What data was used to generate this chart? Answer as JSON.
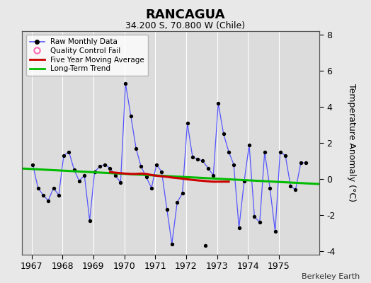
{
  "title": "RANCAGUA",
  "subtitle": "34.200 S, 70.800 W (Chile)",
  "ylabel": "Temperature Anomaly (°C)",
  "credit": "Berkeley Earth",
  "xlim": [
    1966.7,
    1976.3
  ],
  "ylim": [
    -4.2,
    8.2
  ],
  "yticks": [
    -4,
    -2,
    0,
    2,
    4,
    6,
    8
  ],
  "xticks": [
    1967,
    1968,
    1969,
    1970,
    1971,
    1972,
    1973,
    1974,
    1975
  ],
  "bg_color": "#e8e8e8",
  "plot_bg": "#dcdcdc",
  "raw_x": [
    1967.04,
    1967.21,
    1967.38,
    1967.54,
    1967.71,
    1967.88,
    1968.04,
    1968.21,
    1968.38,
    1968.54,
    1968.71,
    1968.88,
    1969.04,
    1969.21,
    1969.38,
    1969.54,
    1969.71,
    1969.88,
    1970.04,
    1970.21,
    1970.38,
    1970.54,
    1970.71,
    1970.88,
    1971.04,
    1971.21,
    1971.38,
    1971.54,
    1971.71,
    1971.88,
    1972.04,
    1972.21,
    1972.38,
    1972.54,
    1972.71,
    1972.88,
    1973.04,
    1973.21,
    1973.38,
    1973.54,
    1973.71,
    1973.88,
    1974.04,
    1974.21,
    1974.38,
    1974.54,
    1974.71,
    1974.88,
    1975.04,
    1975.21,
    1975.38,
    1975.54,
    1975.71,
    1975.88
  ],
  "raw_y": [
    0.8,
    -0.5,
    -0.9,
    -1.2,
    -0.5,
    -0.9,
    1.3,
    1.5,
    0.5,
    -0.1,
    0.2,
    -2.3,
    0.4,
    0.7,
    0.8,
    0.6,
    0.2,
    -0.2,
    5.3,
    3.5,
    1.7,
    0.7,
    0.1,
    -0.5,
    0.8,
    0.4,
    -1.7,
    -3.6,
    -1.3,
    -0.8,
    3.1,
    1.2,
    1.1,
    1.0,
    0.6,
    0.2,
    4.2,
    2.5,
    1.5,
    0.8,
    -2.7,
    -0.1,
    1.9,
    -2.1,
    -2.4,
    1.5,
    -0.5,
    -2.9,
    1.5,
    1.3,
    -0.4,
    -0.6,
    0.9,
    0.9
  ],
  "moving_avg_x": [
    1969.54,
    1969.71,
    1969.88,
    1970.04,
    1970.21,
    1970.38,
    1970.54,
    1970.71,
    1970.88,
    1971.04,
    1971.21,
    1971.38,
    1971.54,
    1971.71,
    1971.88,
    1972.04,
    1972.21,
    1972.38,
    1972.54,
    1972.71,
    1972.88,
    1973.04,
    1973.21,
    1973.38
  ],
  "moving_avg_y": [
    0.38,
    0.35,
    0.32,
    0.3,
    0.28,
    0.28,
    0.3,
    0.28,
    0.22,
    0.18,
    0.15,
    0.12,
    0.08,
    0.05,
    0.02,
    -0.02,
    -0.05,
    -0.08,
    -0.1,
    -0.13,
    -0.15,
    -0.15,
    -0.15,
    -0.15
  ],
  "trend_x": [
    1966.7,
    1976.3
  ],
  "trend_y": [
    0.58,
    -0.28
  ],
  "line_color": "#5555ff",
  "dot_color": "#000000",
  "moving_avg_color": "#cc0000",
  "trend_color": "#00bb00",
  "qc_fail_color": "#ff69b4",
  "isolated_dots_x": [
    1972.62
  ],
  "isolated_dots_y": [
    -3.7
  ]
}
